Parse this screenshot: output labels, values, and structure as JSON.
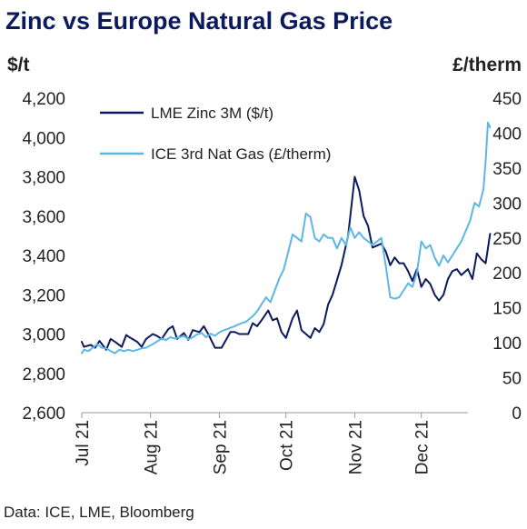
{
  "chart_data": {
    "type": "line",
    "title": "Zinc vs Europe Natural Gas Price",
    "ylabel_left": "$/t",
    "ylabel_right": "£/therm",
    "source": "Data: ICE, LME, Bloomberg",
    "x_tick_labels": [
      "Jul 21",
      "Aug 21",
      "Sep 21",
      "Oct 21",
      "Nov 21",
      "Dec 21"
    ],
    "x_tick_dates": [
      "2021-07-01",
      "2021-08-01",
      "2021-09-01",
      "2021-10-01",
      "2021-11-01",
      "2021-12-01"
    ],
    "x_range": [
      "2021-07-01",
      "2021-12-22"
    ],
    "ylim_left": [
      2600,
      4200
    ],
    "yticks_left": [
      "2,600",
      "2,800",
      "3,000",
      "3,200",
      "3,400",
      "3,600",
      "3,800",
      "4,000",
      "4,200"
    ],
    "ylim_right": [
      0,
      450
    ],
    "yticks_right": [
      "0",
      "50",
      "100",
      "150",
      "200",
      "250",
      "300",
      "350",
      "400",
      "450"
    ],
    "grid": false,
    "legend_position": "top-left",
    "series": [
      {
        "name": "LME Zinc 3M ($/t)",
        "axis": "left",
        "color": "#0b1a5c",
        "points": [
          [
            "2021-07-01",
            2960
          ],
          [
            "2021-07-02",
            2935
          ],
          [
            "2021-07-05",
            2945
          ],
          [
            "2021-07-07",
            2930
          ],
          [
            "2021-07-09",
            2965
          ],
          [
            "2021-07-12",
            2920
          ],
          [
            "2021-07-14",
            2975
          ],
          [
            "2021-07-16",
            2960
          ],
          [
            "2021-07-19",
            2935
          ],
          [
            "2021-07-21",
            2995
          ],
          [
            "2021-07-23",
            2980
          ],
          [
            "2021-07-26",
            2960
          ],
          [
            "2021-07-28",
            2935
          ],
          [
            "2021-07-30",
            2975
          ],
          [
            "2021-08-02",
            3000
          ],
          [
            "2021-08-04",
            2990
          ],
          [
            "2021-08-06",
            2975
          ],
          [
            "2021-08-09",
            3025
          ],
          [
            "2021-08-11",
            3040
          ],
          [
            "2021-08-13",
            2975
          ],
          [
            "2021-08-16",
            3005
          ],
          [
            "2021-08-18",
            2970
          ],
          [
            "2021-08-20",
            3020
          ],
          [
            "2021-08-23",
            3010
          ],
          [
            "2021-08-25",
            3040
          ],
          [
            "2021-08-27",
            3000
          ],
          [
            "2021-08-30",
            2930
          ],
          [
            "2021-09-02",
            2930
          ],
          [
            "2021-09-06",
            3010
          ],
          [
            "2021-09-08",
            3010
          ],
          [
            "2021-09-10",
            3000
          ],
          [
            "2021-09-14",
            3000
          ],
          [
            "2021-09-16",
            3055
          ],
          [
            "2021-09-18",
            3040
          ],
          [
            "2021-09-20",
            3070
          ],
          [
            "2021-09-23",
            3120
          ],
          [
            "2021-09-25",
            3070
          ],
          [
            "2021-09-27",
            3080
          ],
          [
            "2021-09-29",
            3010
          ],
          [
            "2021-10-01",
            2980
          ],
          [
            "2021-10-04",
            3080
          ],
          [
            "2021-10-06",
            3120
          ],
          [
            "2021-10-08",
            3020
          ],
          [
            "2021-10-12",
            2980
          ],
          [
            "2021-10-14",
            3030
          ],
          [
            "2021-10-16",
            3010
          ],
          [
            "2021-10-18",
            3050
          ],
          [
            "2021-10-20",
            3150
          ],
          [
            "2021-10-22",
            3200
          ],
          [
            "2021-10-26",
            3350
          ],
          [
            "2021-10-29",
            3500
          ],
          [
            "2021-11-01",
            3800
          ],
          [
            "2021-11-03",
            3730
          ],
          [
            "2021-11-05",
            3600
          ],
          [
            "2021-11-07",
            3550
          ],
          [
            "2021-11-09",
            3440
          ],
          [
            "2021-11-11",
            3450
          ],
          [
            "2021-11-13",
            3460
          ],
          [
            "2021-11-15",
            3420
          ],
          [
            "2021-11-17",
            3350
          ],
          [
            "2021-11-19",
            3390
          ],
          [
            "2021-11-21",
            3360
          ],
          [
            "2021-11-23",
            3360
          ],
          [
            "2021-11-25",
            3320
          ],
          [
            "2021-11-27",
            3270
          ],
          [
            "2021-11-29",
            3330
          ],
          [
            "2021-12-01",
            3240
          ],
          [
            "2021-12-03",
            3280
          ],
          [
            "2021-12-05",
            3255
          ],
          [
            "2021-12-07",
            3200
          ],
          [
            "2021-12-09",
            3170
          ],
          [
            "2021-12-11",
            3200
          ],
          [
            "2021-12-13",
            3280
          ],
          [
            "2021-12-15",
            3320
          ],
          [
            "2021-12-17",
            3330
          ],
          [
            "2021-12-19",
            3300
          ],
          [
            "2021-12-22",
            3330
          ],
          [
            "2021-12-24",
            3280
          ],
          [
            "2021-12-26",
            3410
          ],
          [
            "2021-12-28",
            3380
          ],
          [
            "2021-12-30",
            3360
          ],
          [
            "2022-01-01",
            3510
          ]
        ]
      },
      {
        "name": "ICE 3rd Nat Gas (£/therm)",
        "axis": "right",
        "color": "#5bb7e6",
        "points": [
          [
            "2021-07-01",
            85
          ],
          [
            "2021-07-02",
            90
          ],
          [
            "2021-07-04",
            88
          ],
          [
            "2021-07-06",
            93
          ],
          [
            "2021-07-08",
            98
          ],
          [
            "2021-07-10",
            93
          ],
          [
            "2021-07-12",
            92
          ],
          [
            "2021-07-14",
            88
          ],
          [
            "2021-07-16",
            85
          ],
          [
            "2021-07-18",
            90
          ],
          [
            "2021-07-20",
            88
          ],
          [
            "2021-07-22",
            90
          ],
          [
            "2021-07-24",
            88
          ],
          [
            "2021-07-26",
            90
          ],
          [
            "2021-07-28",
            92
          ],
          [
            "2021-07-30",
            93
          ],
          [
            "2021-08-02",
            98
          ],
          [
            "2021-08-04",
            102
          ],
          [
            "2021-08-06",
            106
          ],
          [
            "2021-08-08",
            104
          ],
          [
            "2021-08-10",
            108
          ],
          [
            "2021-08-12",
            106
          ],
          [
            "2021-08-14",
            108
          ],
          [
            "2021-08-16",
            110
          ],
          [
            "2021-08-18",
            105
          ],
          [
            "2021-08-20",
            108
          ],
          [
            "2021-08-22",
            112
          ],
          [
            "2021-08-24",
            114
          ],
          [
            "2021-08-26",
            108
          ],
          [
            "2021-08-28",
            113
          ],
          [
            "2021-08-30",
            110
          ],
          [
            "2021-09-01",
            115
          ],
          [
            "2021-09-03",
            118
          ],
          [
            "2021-09-05",
            120
          ],
          [
            "2021-09-08",
            124
          ],
          [
            "2021-09-11",
            128
          ],
          [
            "2021-09-13",
            130
          ],
          [
            "2021-09-16",
            138
          ],
          [
            "2021-09-18",
            145
          ],
          [
            "2021-09-20",
            155
          ],
          [
            "2021-09-22",
            165
          ],
          [
            "2021-09-24",
            158
          ],
          [
            "2021-09-26",
            175
          ],
          [
            "2021-09-28",
            192
          ],
          [
            "2021-09-30",
            205
          ],
          [
            "2021-10-02",
            230
          ],
          [
            "2021-10-04",
            255
          ],
          [
            "2021-10-06",
            250
          ],
          [
            "2021-10-08",
            245
          ],
          [
            "2021-10-10",
            285
          ],
          [
            "2021-10-12",
            280
          ],
          [
            "2021-10-14",
            250
          ],
          [
            "2021-10-16",
            245
          ],
          [
            "2021-10-18",
            255
          ],
          [
            "2021-10-20",
            250
          ],
          [
            "2021-10-22",
            250
          ],
          [
            "2021-10-24",
            235
          ],
          [
            "2021-10-26",
            250
          ],
          [
            "2021-10-28",
            240
          ],
          [
            "2021-10-30",
            265
          ],
          [
            "2021-11-01",
            250
          ],
          [
            "2021-11-03",
            258
          ],
          [
            "2021-11-05",
            250
          ],
          [
            "2021-11-07",
            245
          ],
          [
            "2021-11-09",
            240
          ],
          [
            "2021-11-11",
            245
          ],
          [
            "2021-11-13",
            250
          ],
          [
            "2021-11-15",
            210
          ],
          [
            "2021-11-17",
            165
          ],
          [
            "2021-11-19",
            163
          ],
          [
            "2021-11-21",
            165
          ],
          [
            "2021-11-23",
            175
          ],
          [
            "2021-11-25",
            185
          ],
          [
            "2021-11-27",
            180
          ],
          [
            "2021-11-29",
            200
          ],
          [
            "2021-12-01",
            245
          ],
          [
            "2021-12-03",
            235
          ],
          [
            "2021-12-05",
            240
          ],
          [
            "2021-12-07",
            222
          ],
          [
            "2021-12-09",
            210
          ],
          [
            "2021-12-11",
            225
          ],
          [
            "2021-12-13",
            215
          ],
          [
            "2021-12-15",
            225
          ],
          [
            "2021-12-17",
            235
          ],
          [
            "2021-12-19",
            245
          ],
          [
            "2021-12-21",
            260
          ],
          [
            "2021-12-23",
            275
          ],
          [
            "2021-12-25",
            300
          ],
          [
            "2021-12-27",
            295
          ],
          [
            "2021-12-29",
            320
          ],
          [
            "2021-12-30",
            360
          ],
          [
            "2021-12-31",
            415
          ],
          [
            "2022-01-01",
            408
          ]
        ]
      }
    ]
  }
}
